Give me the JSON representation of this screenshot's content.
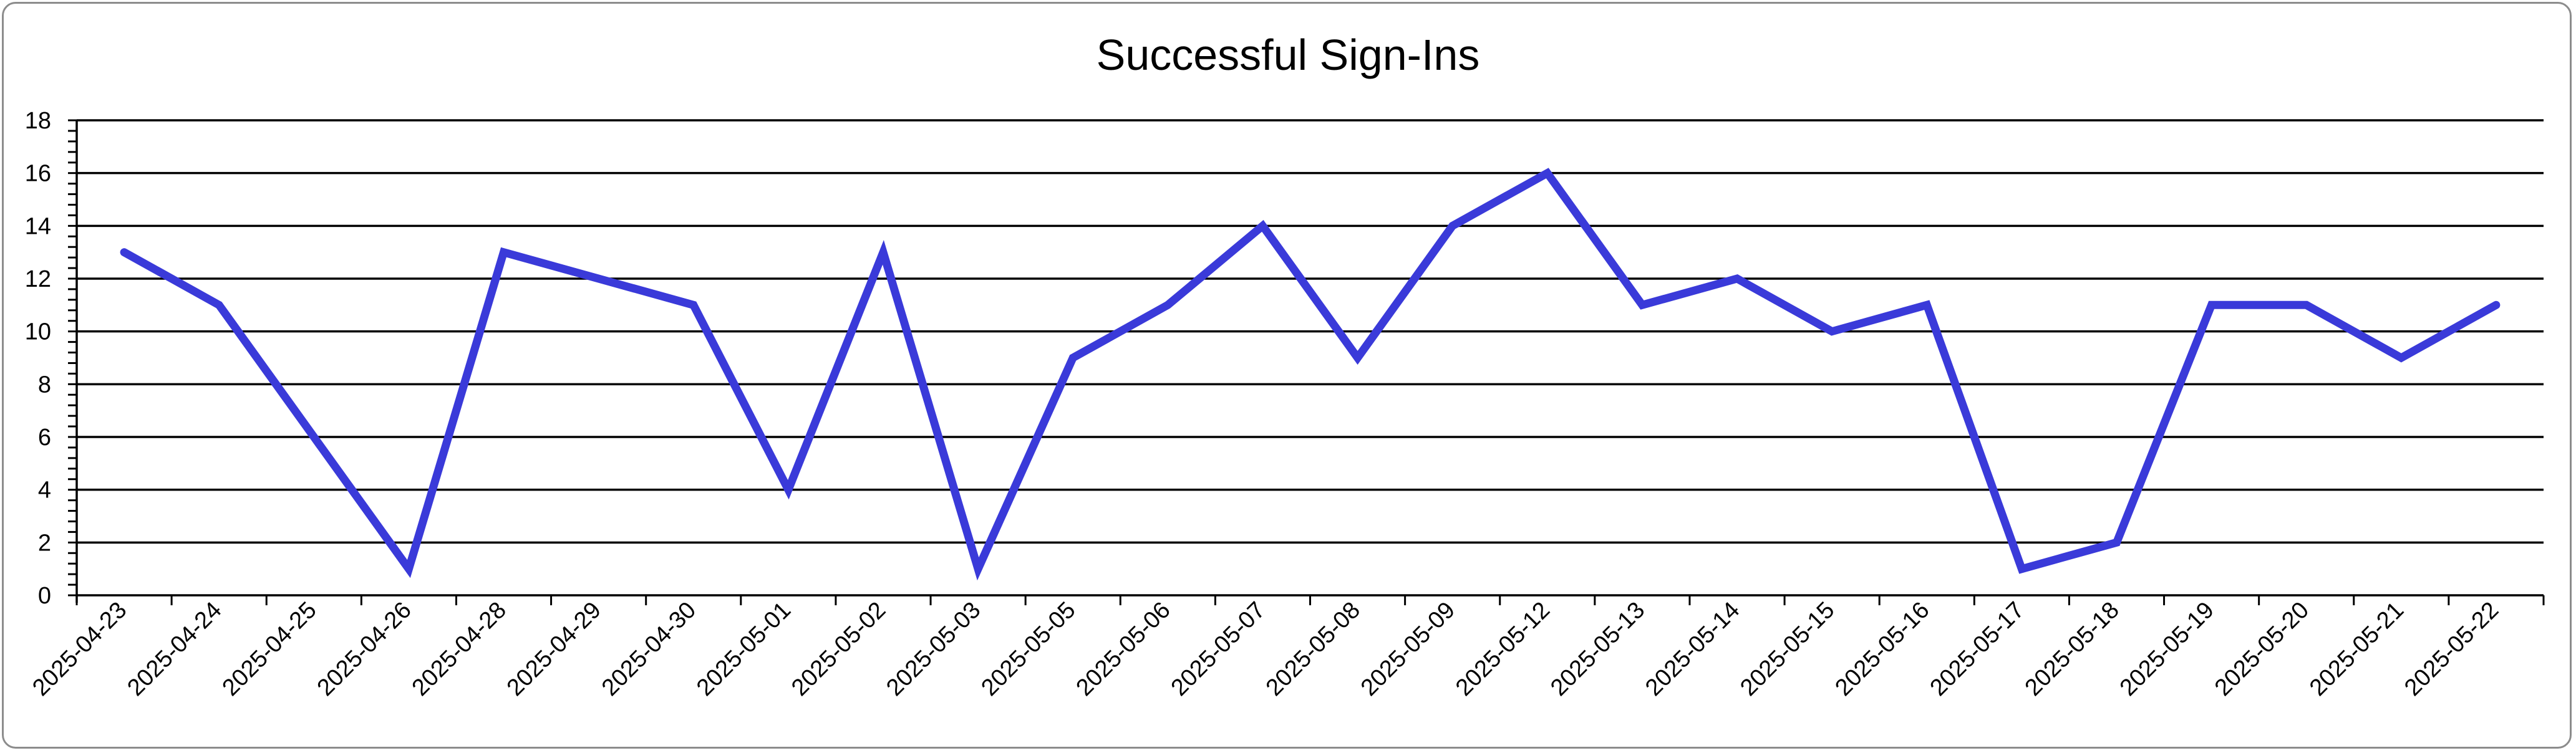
{
  "chart_data": {
    "type": "line",
    "title": "Successful Sign-Ins",
    "xlabel": "",
    "ylabel": "",
    "ylim": [
      0,
      18
    ],
    "y_major_step": 2,
    "y_minor_step": 0.4,
    "grid": true,
    "legend": "none",
    "line_color": "#3a3ad9",
    "categories": [
      "2025-04-23",
      "2025-04-24",
      "2025-04-25",
      "2025-04-26",
      "2025-04-28",
      "2025-04-29",
      "2025-04-30",
      "2025-05-01",
      "2025-05-02",
      "2025-05-03",
      "2025-05-05",
      "2025-05-06",
      "2025-05-07",
      "2025-05-08",
      "2025-05-09",
      "2025-05-12",
      "2025-05-13",
      "2025-05-14",
      "2025-05-15",
      "2025-05-16",
      "2025-05-17",
      "2025-05-18",
      "2025-05-19",
      "2025-05-20",
      "2025-05-21",
      "2025-05-22"
    ],
    "values": [
      13,
      11,
      6,
      1,
      13,
      12,
      11,
      4,
      13,
      1,
      9,
      11,
      14,
      9,
      14,
      16,
      11,
      12,
      10,
      11,
      1,
      2,
      11,
      11,
      9,
      11
    ]
  }
}
